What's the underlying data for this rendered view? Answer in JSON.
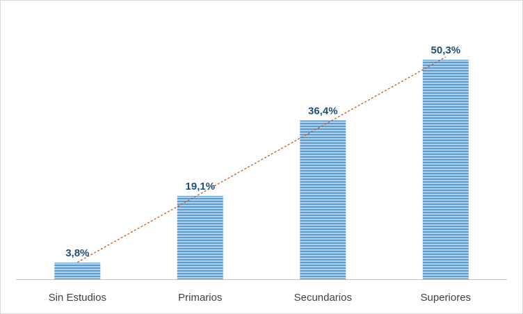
{
  "chart_data": {
    "type": "bar",
    "title": "",
    "xlabel": "",
    "ylabel": "",
    "categories": [
      "Sin Estudios",
      "Primarios",
      "Secundarios",
      "Superiores"
    ],
    "values": [
      3.8,
      19.1,
      36.4,
      50.3
    ],
    "data_labels": [
      "3,8%",
      "19,1%",
      "36,4%",
      "50,3%"
    ],
    "ylim": [
      0,
      50.3
    ],
    "grid": false,
    "legend": "none",
    "trendline": {
      "type": "linear",
      "style": "dotted",
      "color": "#c55a11"
    },
    "colors": {
      "bar": "#5b9bd5",
      "bar_stripe": "#dbe9f6",
      "data_label": "#1f4e79",
      "axis_label": "#404040",
      "axis_line": "#bfbfbf"
    }
  }
}
